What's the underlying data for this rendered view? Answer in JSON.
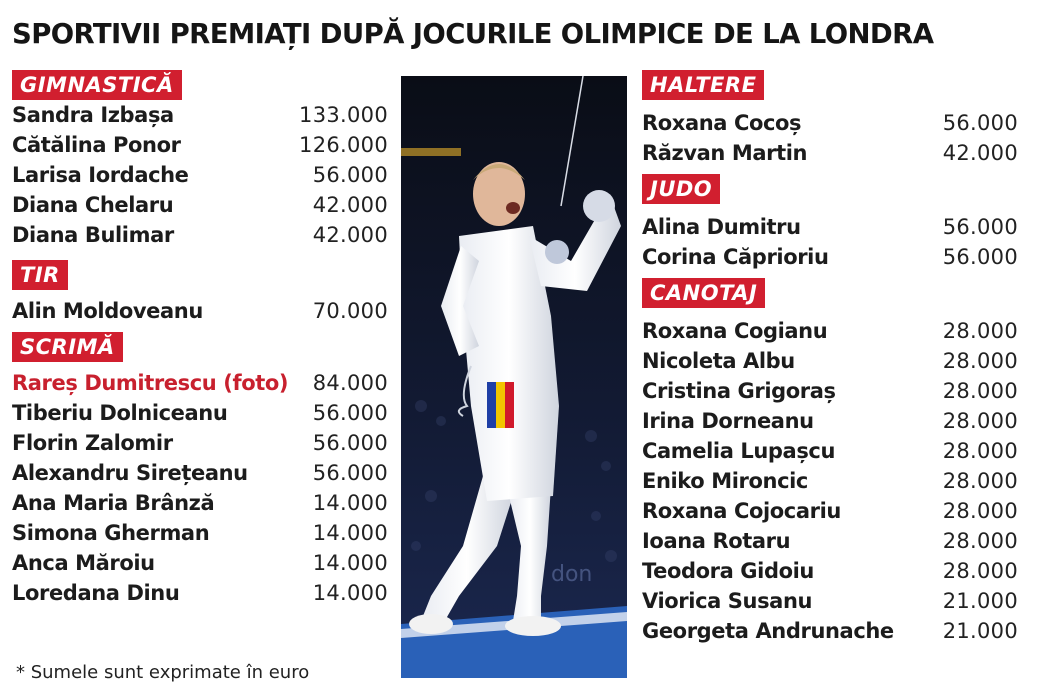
{
  "title": "SPORTIVII PREMIAȚI DUPĂ JOCURILE OLIMPICE DE LA LONDRA",
  "left_sections": [
    {
      "label": "GIMNASTICĂ",
      "rows": [
        {
          "name": "Sandra Izbașa",
          "amount": "133.000"
        },
        {
          "name": "Cătălina Ponor",
          "amount": "126.000"
        },
        {
          "name": "Larisa Iordache",
          "amount": "56.000"
        },
        {
          "name": "Diana Chelaru",
          "amount": "42.000"
        },
        {
          "name": "Diana Bulimar",
          "amount": "42.000"
        }
      ]
    },
    {
      "label": "TIR",
      "rows": [
        {
          "name": "Alin Moldoveanu",
          "amount": "70.000"
        }
      ]
    },
    {
      "label": "SCRIMĂ",
      "rows": [
        {
          "name": "Rareș Dumitrescu (foto)",
          "amount": "84.000",
          "highlight": true
        },
        {
          "name": "Tiberiu Dolniceanu",
          "amount": "56.000"
        },
        {
          "name": "Florin Zalomir",
          "amount": "56.000"
        },
        {
          "name": "Alexandru Sirețeanu",
          "amount": "56.000"
        },
        {
          "name": "Ana Maria Brânză",
          "amount": "14.000"
        },
        {
          "name": "Simona Gherman",
          "amount": "14.000"
        },
        {
          "name": "Anca Măroiu",
          "amount": "14.000"
        },
        {
          "name": "Loredana Dinu",
          "amount": "14.000"
        }
      ]
    }
  ],
  "right_sections": [
    {
      "label": "HALTERE",
      "rows": [
        {
          "name": "Roxana Cocoș",
          "amount": "56.000"
        },
        {
          "name": "Răzvan Martin",
          "amount": "42.000"
        }
      ]
    },
    {
      "label": "JUDO",
      "rows": [
        {
          "name": "Alina Dumitru",
          "amount": "56.000"
        },
        {
          "name": "Corina Căprioriu",
          "amount": "56.000"
        }
      ]
    },
    {
      "label": "CANOTAJ",
      "rows": [
        {
          "name": "Roxana Cogianu",
          "amount": "28.000"
        },
        {
          "name": "Nicoleta Albu",
          "amount": "28.000"
        },
        {
          "name": "Cristina Grigoraș",
          "amount": "28.000"
        },
        {
          "name": "Irina Dorneanu",
          "amount": "28.000"
        },
        {
          "name": "Camelia Lupașcu",
          "amount": "28.000"
        },
        {
          "name": "Eniko Mironcic",
          "amount": "28.000"
        },
        {
          "name": "Roxana Cojocariu",
          "amount": "28.000"
        },
        {
          "name": "Ioana Rotaru",
          "amount": "28.000"
        },
        {
          "name": "Teodora Gidoiu",
          "amount": "28.000"
        },
        {
          "name": "Viorica Susanu",
          "amount": "21.000"
        },
        {
          "name": "Georgeta Andrunache",
          "amount": "21.000"
        }
      ]
    }
  ],
  "footnote": "* Sumele sunt exprimate în euro",
  "photo": {
    "subject": "fencer-celebrating",
    "flag_colors": [
      "#1f3fa6",
      "#f2c500",
      "#d0192b"
    ],
    "accent": "#d11f2f"
  }
}
